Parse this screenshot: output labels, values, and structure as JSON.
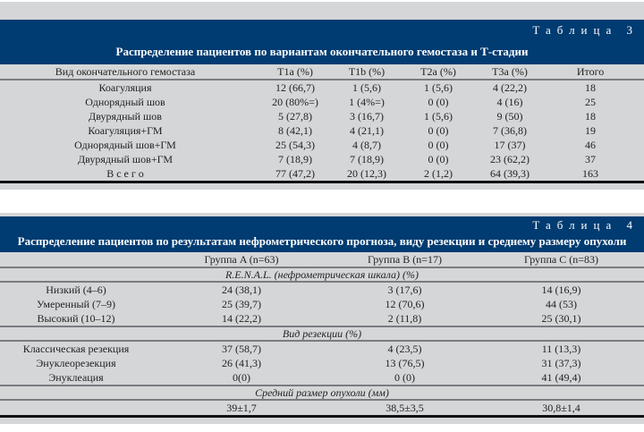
{
  "table3": {
    "number_label": "Таблица 3",
    "title": "Распределение пациентов по вариантам окончательного гемостаза и Т-стадии",
    "headers": [
      "Вид окончательного гемостаза",
      "T1a (%)",
      "T1b (%)",
      "T2a (%)",
      "T3a (%)",
      "Итого"
    ],
    "rows": [
      [
        "Коагуляция",
        "12 (66,7)",
        "1 (5,6)",
        "1 (5,6)",
        "4 (22,2)",
        "18"
      ],
      [
        "Однорядный шов",
        "20 (80%=)",
        "1 (4%=)",
        "0 (0)",
        "4 (16)",
        "25"
      ],
      [
        "Двурядный шов",
        "5 (27,8)",
        "3 (16,7)",
        "1 (5,6)",
        "9 (50)",
        "18"
      ],
      [
        "Коагуляция+ГМ",
        "8 (42,1)",
        "4 (21,1)",
        "0 (0)",
        "7 (36,8)",
        "19"
      ],
      [
        "Однорядный шов+ГМ",
        "25 (54,3)",
        "4 (8,7)",
        "0 (0)",
        "17 (37)",
        "46"
      ],
      [
        "Двурядный шов+ГМ",
        "7 (18,9)",
        "7 (18,9)",
        "0 (0)",
        "23 (62,2)",
        "37"
      ],
      [
        "В с е г о",
        "77 (47,2)",
        "20 (12,3)",
        "2 (1,2)",
        "64 (39,3)",
        "163"
      ]
    ]
  },
  "table4": {
    "number_label": "Таблица 4",
    "title": "Распределение пациентов по результатам нефрометрического прогноза, виду резекции и среднему размеру опухоли",
    "headers": [
      "",
      "Группа A (n=63)",
      "Группа B (n=17)",
      "Группа C (n=83)"
    ],
    "sections": [
      {
        "title": "R.E.N.A.L. (нефрометрическая шкала) (%)",
        "rows": [
          [
            "Низкий (4–6)",
            "24 (38,1)",
            "3 (17,6)",
            "14 (16,9)"
          ],
          [
            "Умеренный (7–9)",
            "25 (39,7)",
            "12 (70,6)",
            "44 (53)"
          ],
          [
            "Высокий (10–12)",
            "14 (22,2)",
            "2 (11,8)",
            "25 (30,1)"
          ]
        ]
      },
      {
        "title": "Вид резекции (%)",
        "rows": [
          [
            "Классическая резекция",
            "37 (58,7)",
            "4 (23,5)",
            "11 (13,3)"
          ],
          [
            "Энуклеорезекция",
            "26 (41,3)",
            "13 (76,5)",
            "31 (37,3)"
          ],
          [
            "Энуклеация",
            "0(0)",
            "0 (0)",
            "41 (49,4)"
          ]
        ]
      },
      {
        "title": "Средний размер опухоли (мм)",
        "rows": [
          [
            "",
            "39±1,7",
            "38,5±3,5",
            "30,8±1,4"
          ]
        ]
      }
    ]
  }
}
